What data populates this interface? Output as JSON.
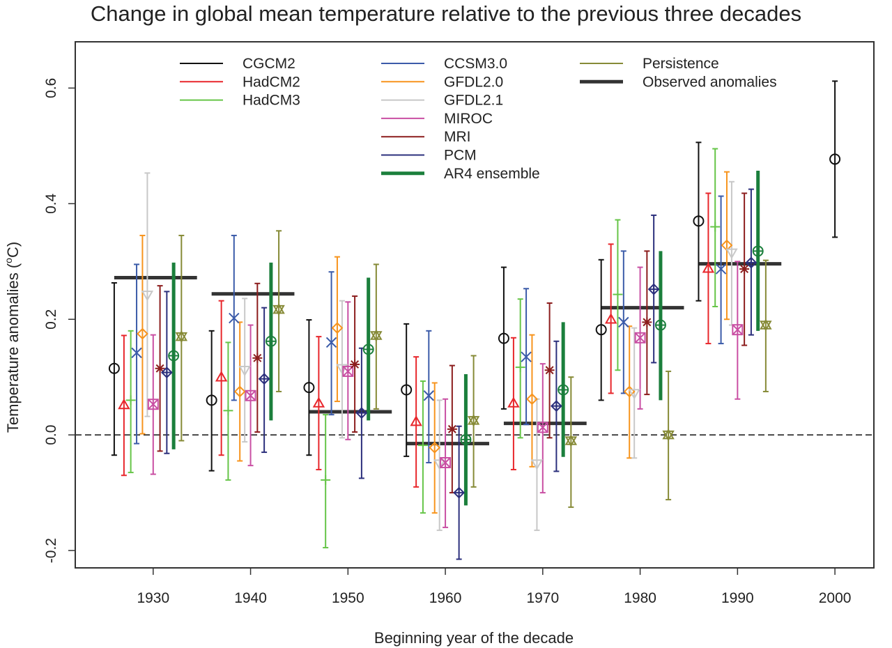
{
  "chart_data": {
    "type": "scatter",
    "title": "Change in global mean temperature relative to the previous three decades",
    "xlabel": "Beginning year of the decade",
    "ylabel": "Temperature anomalies (",
    "ylabel_sup": "o",
    "ylabel_end": "C)",
    "xlim": [
      1922,
      2004
    ],
    "ylim": [
      -0.23,
      0.68
    ],
    "xticks": [
      1930,
      1940,
      1950,
      1960,
      1970,
      1980,
      1990,
      2000
    ],
    "yticks": [
      -0.2,
      0.0,
      0.2,
      0.4,
      0.6
    ],
    "ytick_labels": [
      "-0.2",
      "0.0",
      "0.2",
      "0.4",
      "0.6"
    ],
    "reference_line": {
      "y": 0.0,
      "style": "dashed"
    },
    "decades": [
      1930,
      1940,
      1950,
      1960,
      1970,
      1980,
      1990
    ],
    "legend_placement": "top, three columns",
    "series": [
      {
        "name": "CGCM2",
        "color": "#111111",
        "marker": "circle",
        "x": [
          1926,
          1936,
          1946,
          1956,
          1966,
          1976,
          1986,
          2000
        ],
        "y": [
          0.115,
          0.06,
          0.082,
          0.078,
          0.167,
          0.182,
          0.37,
          0.477
        ],
        "lo": [
          -0.035,
          -0.062,
          -0.035,
          -0.037,
          0.045,
          0.06,
          0.232,
          0.342
        ],
        "hi": [
          0.263,
          0.18,
          0.199,
          0.192,
          0.29,
          0.303,
          0.506,
          0.612
        ]
      },
      {
        "name": "HadCM2",
        "color": "#e8262b",
        "marker": "triangle",
        "x": [
          1927,
          1937,
          1947,
          1957,
          1967,
          1977,
          1987
        ],
        "y": [
          0.052,
          0.1,
          0.055,
          0.023,
          0.055,
          0.2,
          0.288
        ],
        "lo": [
          -0.07,
          -0.035,
          -0.06,
          -0.09,
          -0.06,
          0.072,
          0.158
        ],
        "hi": [
          0.172,
          0.232,
          0.17,
          0.135,
          0.168,
          0.33,
          0.418
        ]
      },
      {
        "name": "HadCM3",
        "color": "#66c548",
        "marker": "plus",
        "x": [
          1927.7,
          1937.7,
          1947.7,
          1957.7,
          1967.7,
          1977.7,
          1987.7
        ],
        "y": [
          0.06,
          0.042,
          -0.078,
          -0.018,
          0.117,
          0.243,
          0.36
        ],
        "lo": [
          -0.065,
          -0.078,
          -0.195,
          -0.135,
          -0.005,
          0.112,
          0.222
        ],
        "hi": [
          0.18,
          0.16,
          0.035,
          0.093,
          0.235,
          0.372,
          0.495
        ]
      },
      {
        "name": "CCSM3.0",
        "color": "#3b5ba9",
        "marker": "x",
        "x": [
          1928.3,
          1938.3,
          1948.3,
          1958.3,
          1968.3,
          1978.3,
          1988.3
        ],
        "y": [
          0.142,
          0.202,
          0.16,
          0.068,
          0.135,
          0.195,
          0.287
        ],
        "lo": [
          -0.015,
          0.06,
          0.035,
          -0.048,
          0.018,
          0.072,
          0.158
        ],
        "hi": [
          0.295,
          0.345,
          0.282,
          0.18,
          0.253,
          0.318,
          0.413
        ]
      },
      {
        "name": "GFDL2.0",
        "color": "#f7941d",
        "marker": "diamond",
        "x": [
          1928.9,
          1938.9,
          1948.9,
          1958.9,
          1968.9,
          1978.9,
          1988.9
        ],
        "y": [
          0.175,
          0.075,
          0.185,
          -0.022,
          0.062,
          0.075,
          0.328
        ],
        "lo": [
          0.002,
          -0.045,
          0.058,
          -0.135,
          -0.055,
          -0.04,
          0.2
        ],
        "hi": [
          0.345,
          0.195,
          0.308,
          0.09,
          0.173,
          0.188,
          0.455
        ]
      },
      {
        "name": "GFDL2.1",
        "color": "#c8c8c8",
        "marker": "triangle-down",
        "x": [
          1929.4,
          1939.4,
          1949.4,
          1959.4,
          1969.4,
          1979.4,
          1989.4
        ],
        "y": [
          0.242,
          0.112,
          0.115,
          -0.05,
          -0.05,
          0.072,
          0.315
        ],
        "lo": [
          0.032,
          -0.012,
          -0.005,
          -0.165,
          -0.165,
          -0.04,
          0.19
        ],
        "hi": [
          0.453,
          0.236,
          0.232,
          0.06,
          0.062,
          0.185,
          0.438
        ]
      },
      {
        "name": "MIROC",
        "color": "#c94fa3",
        "marker": "square-x",
        "x": [
          1930,
          1940,
          1950,
          1960,
          1970,
          1980,
          1990
        ],
        "y": [
          0.053,
          0.068,
          0.11,
          -0.048,
          0.013,
          0.168,
          0.182
        ],
        "lo": [
          -0.068,
          -0.053,
          -0.008,
          -0.16,
          -0.1,
          0.045,
          0.062
        ],
        "hi": [
          0.173,
          0.19,
          0.23,
          0.062,
          0.123,
          0.29,
          0.3
        ]
      },
      {
        "name": "MRI",
        "color": "#8c1d1d",
        "marker": "star",
        "x": [
          1930.7,
          1940.7,
          1950.7,
          1960.7,
          1970.7,
          1980.7,
          1990.7
        ],
        "y": [
          0.115,
          0.133,
          0.122,
          0.01,
          0.112,
          0.195,
          0.287
        ],
        "lo": [
          -0.028,
          0.005,
          0.005,
          -0.1,
          -0.005,
          0.07,
          0.155
        ],
        "hi": [
          0.258,
          0.262,
          0.24,
          0.12,
          0.228,
          0.318,
          0.418
        ]
      },
      {
        "name": "PCM",
        "color": "#2b2f7c",
        "marker": "diamond-plus",
        "x": [
          1931.4,
          1941.4,
          1951.4,
          1961.4,
          1971.4,
          1981.4,
          1991.4
        ],
        "y": [
          0.108,
          0.097,
          0.038,
          -0.1,
          0.05,
          0.252,
          0.298
        ],
        "lo": [
          -0.032,
          -0.03,
          -0.075,
          -0.215,
          -0.063,
          0.125,
          0.173
        ],
        "hi": [
          0.248,
          0.22,
          0.15,
          0.015,
          0.162,
          0.38,
          0.425
        ]
      },
      {
        "name": "AR4 ensemble",
        "color": "#1b7f3c",
        "marker": "circle-plus",
        "thick": true,
        "x": [
          1932.1,
          1942.1,
          1952.1,
          1962.1,
          1972.1,
          1982.1,
          1992.1
        ],
        "y": [
          0.137,
          0.162,
          0.148,
          -0.008,
          0.078,
          0.19,
          0.318
        ],
        "lo": [
          -0.025,
          0.025,
          0.025,
          -0.122,
          -0.038,
          0.06,
          0.18
        ],
        "hi": [
          0.298,
          0.298,
          0.272,
          0.105,
          0.195,
          0.318,
          0.457
        ]
      },
      {
        "name": "Persistence",
        "color": "#868a36",
        "marker": "hourglass",
        "x": [
          1932.9,
          1942.9,
          1952.9,
          1962.9,
          1972.9,
          1982.9,
          1992.9
        ],
        "y": [
          0.17,
          0.217,
          0.172,
          0.025,
          -0.01,
          0.0,
          0.19
        ],
        "lo": [
          -0.01,
          0.075,
          0.045,
          -0.09,
          -0.125,
          -0.112,
          0.075
        ],
        "hi": [
          0.345,
          0.353,
          0.295,
          0.137,
          0.1,
          0.11,
          0.302
        ]
      }
    ],
    "observed": {
      "name": "Observed anomalies",
      "color": "#333333",
      "values": [
        0.272,
        0.244,
        0.04,
        -0.015,
        0.02,
        0.22,
        0.296
      ]
    }
  }
}
